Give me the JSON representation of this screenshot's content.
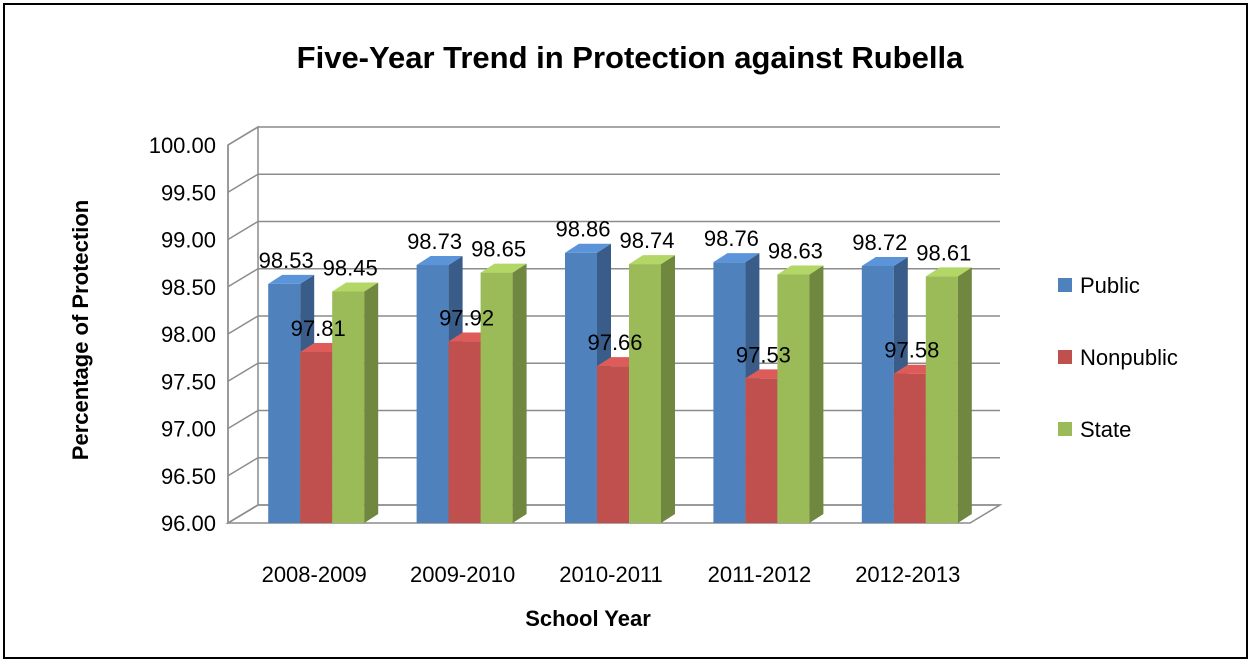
{
  "chart_data": {
    "type": "bar",
    "title": "Five-Year Trend in Protection against Rubella",
    "xlabel": "School Year",
    "ylabel": "Percentage of Protection",
    "categories": [
      "2008-2009",
      "2009-2010",
      "2010-2011",
      "2011-2012",
      "2012-2013"
    ],
    "series": [
      {
        "name": "Public",
        "color": "#4F81BD",
        "values": [
          98.53,
          98.73,
          98.86,
          98.76,
          98.72
        ]
      },
      {
        "name": "Nonpublic",
        "color": "#C0504D",
        "values": [
          97.81,
          97.92,
          97.66,
          97.53,
          97.58
        ]
      },
      {
        "name": "State",
        "color": "#9BBB59",
        "values": [
          98.45,
          98.65,
          98.74,
          98.63,
          98.61
        ]
      }
    ],
    "ylim": [
      96.0,
      100.0
    ],
    "yticks": [
      "96.00",
      "96.50",
      "97.00",
      "97.50",
      "98.00",
      "98.50",
      "99.00",
      "99.50",
      "100.00"
    ],
    "data_labels": [
      [
        "98.53",
        "98.73",
        "98.86",
        "98.76",
        "98.72"
      ],
      [
        "97.81",
        "97.92",
        "97.66",
        "97.53",
        "97.58"
      ],
      [
        "98.45",
        "98.65",
        "98.74",
        "98.63",
        "98.61"
      ]
    ],
    "grid": true,
    "legend": "right",
    "style": "3d-clustered-column"
  }
}
